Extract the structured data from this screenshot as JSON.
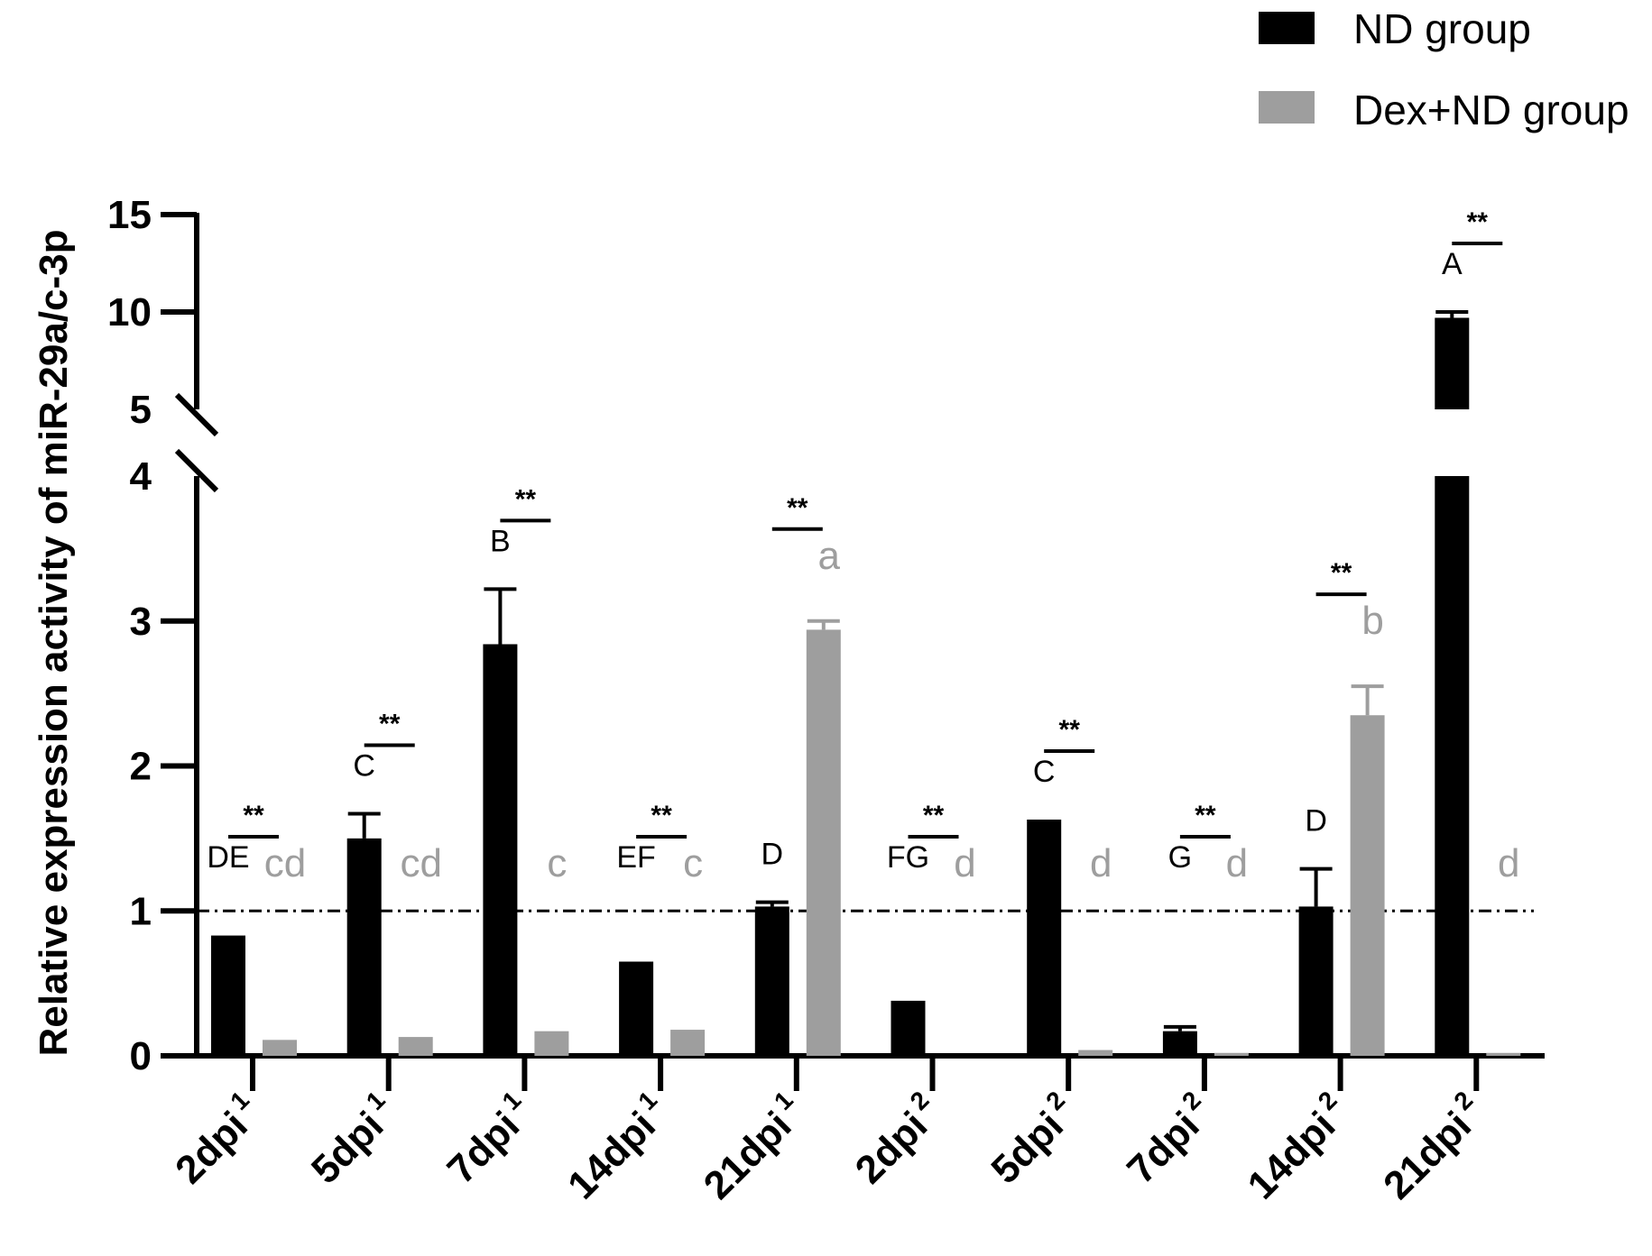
{
  "chart_data": {
    "type": "bar",
    "title": "",
    "ylabel": "Relative expression activity of miR-29a/c-3p",
    "xlabel": "",
    "ylim": [
      0,
      15
    ],
    "y_break": [
      4,
      5
    ],
    "yticks_lower": [
      "0",
      "1",
      "2",
      "3",
      "4"
    ],
    "yticks_upper": [
      "5",
      "10",
      "15"
    ],
    "reference_line": 1,
    "legend": {
      "position": "top-right"
    },
    "categories": [
      {
        "label": "2dpi",
        "sup": "1"
      },
      {
        "label": "5dpi",
        "sup": "1"
      },
      {
        "label": "7dpi",
        "sup": "1"
      },
      {
        "label": "14dpi",
        "sup": "1"
      },
      {
        "label": "21dpi",
        "sup": "1"
      },
      {
        "label": "2dpi",
        "sup": "2"
      },
      {
        "label": "5dpi",
        "sup": "2"
      },
      {
        "label": "7dpi",
        "sup": "2"
      },
      {
        "label": "14dpi",
        "sup": "2"
      },
      {
        "label": "21dpi",
        "sup": "2"
      }
    ],
    "series": [
      {
        "name": "ND group",
        "color": "#000000",
        "values": [
          0.83,
          1.5,
          2.84,
          0.65,
          1.03,
          0.38,
          1.63,
          0.17,
          1.03,
          9.7
        ],
        "errors": [
          0,
          0.17,
          0.38,
          0,
          0.03,
          0,
          0,
          0.03,
          0.26,
          0.3
        ],
        "letters": [
          "DE",
          "C",
          "B",
          "EF",
          "D",
          "FG",
          "C",
          "G",
          "D",
          "A"
        ]
      },
      {
        "name": "Dex+ND group",
        "color": "#9e9e9e",
        "values": [
          0.11,
          0.13,
          0.17,
          0.18,
          2.94,
          0,
          0.04,
          0.02,
          2.35,
          0.02
        ],
        "errors": [
          0,
          0,
          0,
          0,
          0.06,
          0,
          0,
          0,
          0.2,
          0
        ],
        "letters": [
          "cd",
          "cd",
          "c",
          "c",
          "a",
          "d",
          "d",
          "d",
          "b",
          "d"
        ]
      }
    ],
    "significance": [
      "**",
      "**",
      "**",
      "**",
      "**",
      "**",
      "**",
      "**",
      "**",
      "**"
    ]
  }
}
